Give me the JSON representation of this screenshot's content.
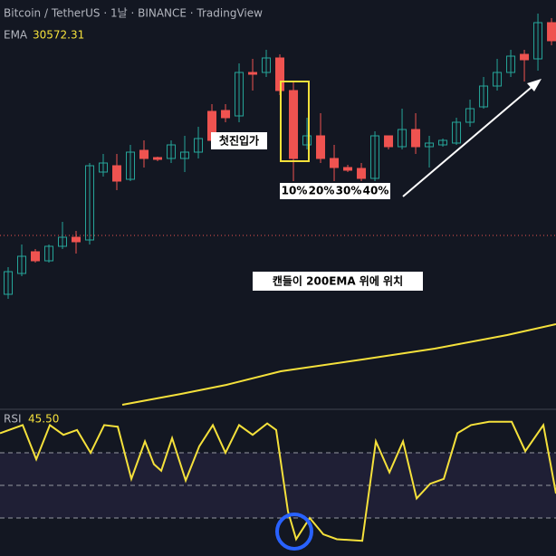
{
  "chart_data": {
    "type": "candlestick",
    "title": "Bitcoin / TetherUS · 1날 · BINANCE · TradingView",
    "xlim": [
      -0.6,
      40.33
    ],
    "ylim": [
      0,
      450
    ],
    "up_color": "#26a69a",
    "down_color": "#ef5350",
    "open": [
      125,
      148,
      172,
      162,
      178,
      188,
      185,
      260,
      267,
      252,
      284,
      276,
      275,
      275,
      282,
      327,
      328,
      322,
      370,
      370,
      386,
      350,
      290,
      300,
      275,
      265,
      264,
      253,
      300,
      288,
      307,
      288,
      290,
      292,
      315,
      332,
      355,
      370,
      390,
      385,
      425
    ],
    "close": [
      150,
      167,
      162,
      178,
      188,
      183,
      267,
      270,
      250,
      282,
      275,
      274,
      290,
      282,
      297,
      295,
      320,
      370,
      368,
      386,
      350,
      275,
      300,
      275,
      265,
      262,
      253,
      300,
      288,
      307,
      288,
      292,
      295,
      315,
      330,
      355,
      370,
      388,
      384,
      425,
      405
    ],
    "high": [
      155,
      180,
      175,
      180,
      205,
      195,
      270,
      280,
      280,
      290,
      295,
      277,
      295,
      300,
      310,
      335,
      335,
      380,
      385,
      395,
      390,
      360,
      320,
      325,
      290,
      268,
      270,
      305,
      300,
      330,
      325,
      300,
      297,
      320,
      340,
      365,
      385,
      395,
      395,
      435,
      430
    ],
    "low": [
      120,
      145,
      160,
      160,
      175,
      170,
      180,
      255,
      240,
      250,
      265,
      272,
      270,
      260,
      275,
      290,
      315,
      315,
      350,
      365,
      345,
      250,
      285,
      270,
      250,
      260,
      250,
      250,
      285,
      285,
      280,
      265,
      288,
      290,
      310,
      330,
      350,
      365,
      360,
      372,
      400
    ],
    "ema": {
      "name": "EMA",
      "value": 30572.31,
      "color": "#f5e13b",
      "x": [
        8.4,
        12.73,
        16.07,
        20.07,
        26.07,
        31.4,
        36.73,
        40.33
      ],
      "values": [
        3,
        15,
        25,
        40,
        53,
        65,
        80,
        92
      ]
    },
    "price_line": 190,
    "annotations": [
      "첫진입가",
      "10%",
      "20%",
      "30%",
      "40%",
      "캔들이 200EMA 위에 위치"
    ],
    "rsi": {
      "name": "RSI",
      "value": 45.5,
      "value_label": "45.50",
      "color": "#f5e13b",
      "ylim": [
        6.7,
        100
      ],
      "levels": [
        70,
        50,
        30
      ],
      "x": [
        -0.6,
        1.07,
        2.07,
        3.07,
        4.07,
        5.07,
        6.07,
        7.07,
        8.07,
        9.07,
        10.07,
        10.73,
        11.27,
        12.07,
        13.07,
        14.07,
        15.07,
        16,
        17,
        18,
        19.07,
        19.73,
        20.6,
        21.2,
        22.2,
        23.2,
        24.2,
        26.07,
        27.07,
        28.07,
        29.07,
        30.07,
        31.07,
        32.07,
        33.07,
        34.07,
        35.4,
        37.07,
        38.07,
        39.4,
        40.33
      ],
      "values": [
        82,
        87,
        66,
        87,
        81,
        84,
        70,
        87,
        86,
        54,
        77,
        63,
        59,
        79,
        53,
        74,
        87,
        70,
        87,
        81,
        88,
        84,
        34,
        17,
        30,
        20,
        17,
        16,
        77,
        58,
        77,
        42,
        51,
        54,
        82,
        87,
        89,
        89,
        71,
        87,
        45
      ]
    }
  }
}
